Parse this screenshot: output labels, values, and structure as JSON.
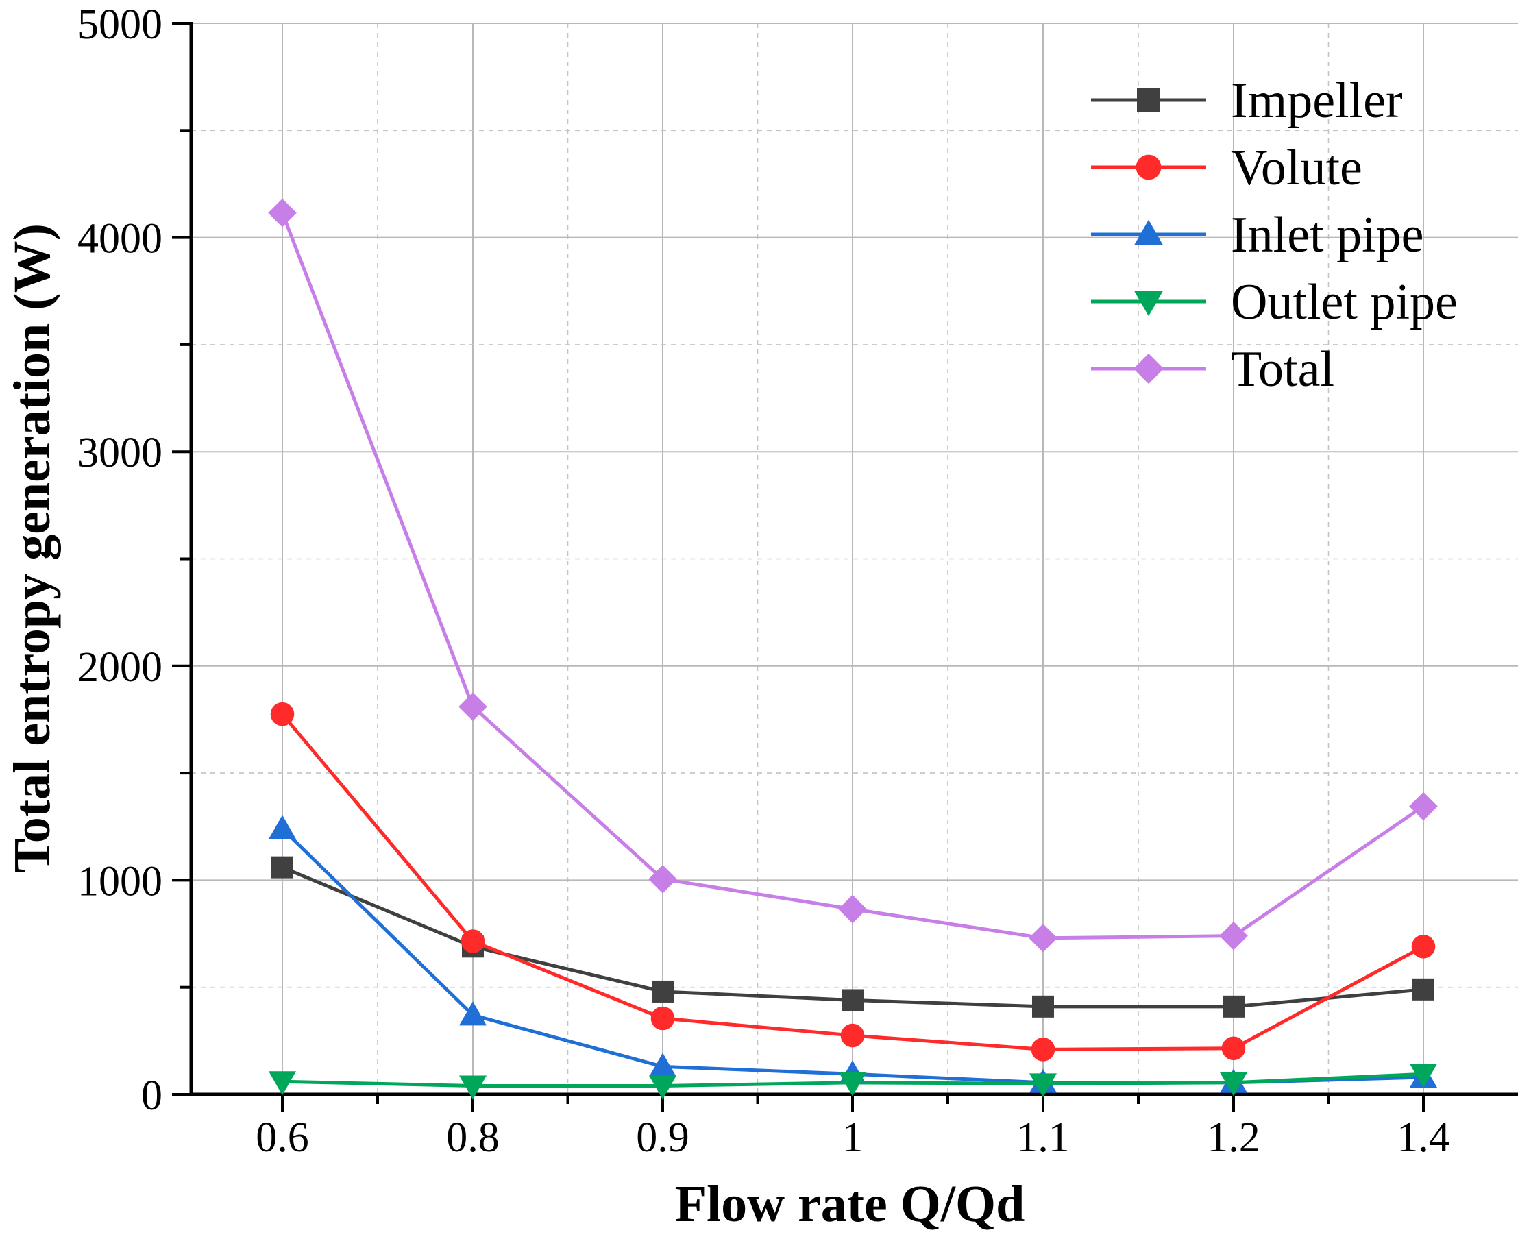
{
  "chart_data": {
    "type": "line",
    "title": "",
    "xlabel": "Flow rate Q/Qd",
    "ylabel": "Total entropy generation (W)",
    "categories": [
      "0.6",
      "0.8",
      "0.9",
      "1",
      "1.1",
      "1.2",
      "1.4"
    ],
    "ylim": [
      0,
      5000
    ],
    "yticks": [
      "0",
      "1000",
      "2000",
      "3000",
      "4000",
      "5000"
    ],
    "grid": true,
    "legend_position": "top-right",
    "series": [
      {
        "name": "Impeller",
        "color": "#404040",
        "marker": "square",
        "values": [
          1060,
          690,
          480,
          440,
          410,
          410,
          490
        ]
      },
      {
        "name": "Volute",
        "color": "#ff2a2a",
        "marker": "circle",
        "values": [
          1775,
          715,
          355,
          275,
          210,
          215,
          690
        ]
      },
      {
        "name": "Inlet pipe",
        "color": "#1f6fd6",
        "marker": "triangle-up",
        "values": [
          1240,
          370,
          130,
          95,
          55,
          55,
          80
        ]
      },
      {
        "name": "Outlet pipe",
        "color": "#00a65a",
        "marker": "triangle-down",
        "values": [
          60,
          40,
          40,
          55,
          50,
          55,
          95
        ]
      },
      {
        "name": "Total",
        "color": "#c77ee6",
        "marker": "diamond",
        "values": [
          4115,
          1810,
          1005,
          865,
          730,
          740,
          1345
        ]
      }
    ]
  }
}
